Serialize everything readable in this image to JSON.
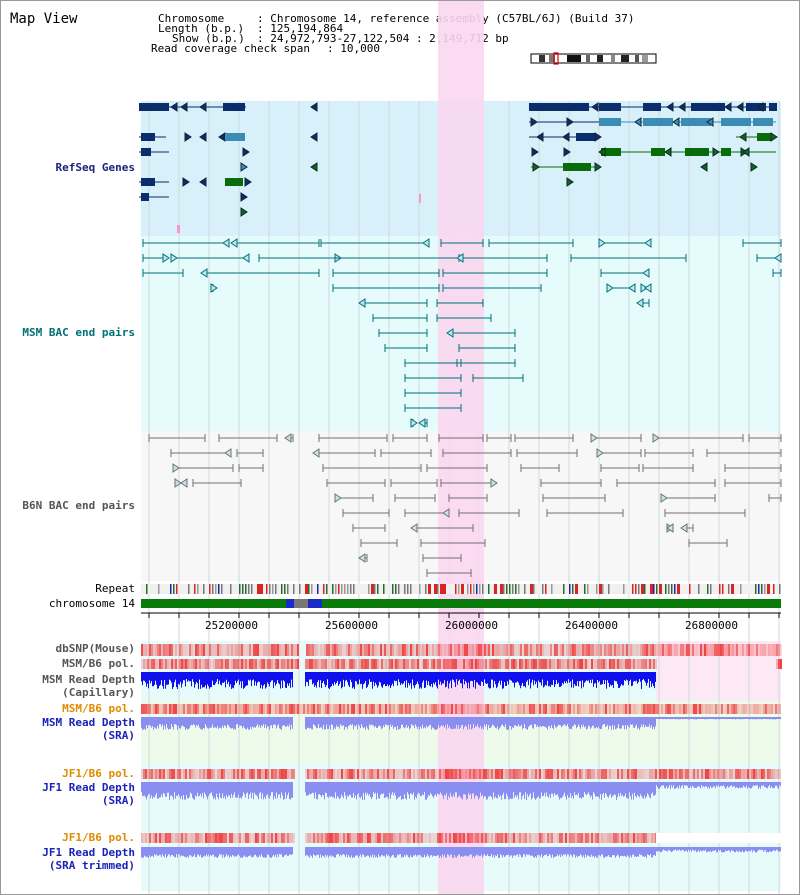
{
  "title": "Map View",
  "info": {
    "chromosome_key": "Chromosome",
    "chromosome_val": ": Chromosome 14, reference assembly (C57BL/6J) (Build 37)",
    "length_key": "Length (b.p.)",
    "length_val": ": 125,194,864",
    "show_key": "Show (b.p.)",
    "show_val": ": 24,972,793-27,122,504 : 2,149,712 bp",
    "span_key": "Read coverage check span",
    "span_val": ": 10,000"
  },
  "tracks": {
    "refseq": "RefSeq Genes",
    "msm_bac": "MSM BAC end pairs",
    "b6n_bac": "B6N BAC end pairs",
    "repeat": "Repeat",
    "chromosome": "chromosome 14",
    "dbsnp": "dbSNP(Mouse)",
    "msm_b6_pol": "MSM/B6 pol.",
    "msm_depth_cap_1": "MSM Read Depth",
    "msm_depth_cap_2": "(Capillary)",
    "msm_b6_pol_sra": "MSM/B6 pol.",
    "msm_depth_sra_1": "MSM Read Depth",
    "msm_depth_sra_2": "(SRA)",
    "jf1_b6_pol": "JF1/B6 pol.",
    "jf1_depth_sra_1": "JF1 Read Depth",
    "jf1_depth_sra_2": "(SRA)",
    "jf1_b6_pol_trim": "JF1/B6 pol.",
    "jf1_depth_trim_1": "JF1 Read Depth",
    "jf1_depth_trim_2": "(SRA trimmed)"
  },
  "axis_ticks": [
    "25200000",
    "25600000",
    "26000000",
    "26400000",
    "26800000"
  ],
  "colors": {
    "gene_dark": "#0b2d6b",
    "gene_mid": "#3b8bb5",
    "gene_green": "#0a6b0a",
    "msm_line": "#00707a",
    "b6n_line": "#707070",
    "highlight": "#f9d7ef",
    "depth_blue": "#1010ee",
    "depth_light": "#8a8ef0",
    "snp_red": "#ee4444"
  }
}
